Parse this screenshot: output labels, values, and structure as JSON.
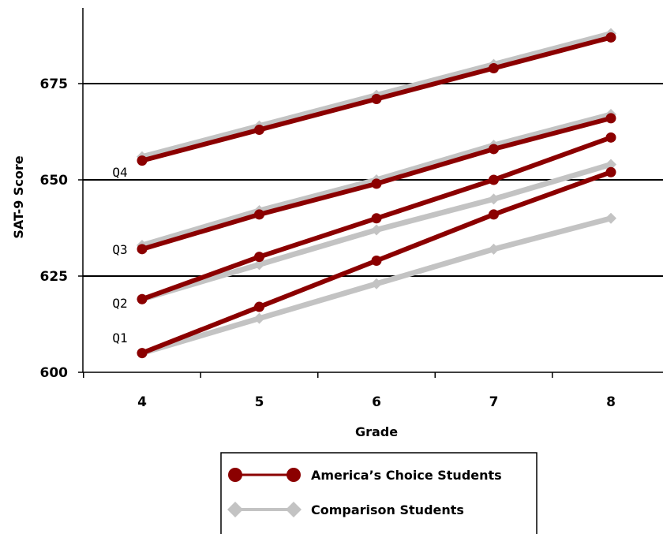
{
  "colors": {
    "america": "#8b0000",
    "comparison": "#c3c3c3",
    "gridline": "#000000"
  },
  "chart_data": {
    "type": "line",
    "title": "",
    "xlabel": "Grade",
    "ylabel": "SAT-9 Score",
    "x": [
      4,
      5,
      6,
      7,
      8
    ],
    "x_tick_labels": [
      "4",
      "5",
      "6",
      "7",
      "8"
    ],
    "ylim": [
      600,
      695
    ],
    "y_ticks": [
      600,
      625,
      650,
      675
    ],
    "y_tick_labels": [
      "600",
      "625",
      "650",
      "675"
    ],
    "grid": "horizontal",
    "legend_position": "bottom",
    "quartile_labels": [
      {
        "text": "Q4",
        "value": 652
      },
      {
        "text": "Q3",
        "value": 632
      },
      {
        "text": "Q2",
        "value": 618
      },
      {
        "text": "Q1",
        "value": 609
      }
    ],
    "series": [
      {
        "legend_entry": "America's Choice Students",
        "group": "america",
        "quartile": "Q4",
        "values": [
          655,
          663,
          671,
          679,
          687
        ]
      },
      {
        "legend_entry": "Comparison Students",
        "group": "comparison",
        "quartile": "Q4",
        "values": [
          656,
          664,
          672,
          680,
          688
        ]
      },
      {
        "legend_entry": "America's Choice Students",
        "group": "america",
        "quartile": "Q3",
        "values": [
          632,
          641,
          649,
          658,
          666
        ]
      },
      {
        "legend_entry": "Comparison Students",
        "group": "comparison",
        "quartile": "Q3",
        "values": [
          633,
          642,
          650,
          659,
          667
        ]
      },
      {
        "legend_entry": "America's Choice Students",
        "group": "america",
        "quartile": "Q2",
        "values": [
          619,
          630,
          640,
          650,
          661
        ]
      },
      {
        "legend_entry": "Comparison Students",
        "group": "comparison",
        "quartile": "Q2",
        "values": [
          619,
          628,
          637,
          645,
          654
        ]
      },
      {
        "legend_entry": "America's Choice Students",
        "group": "america",
        "quartile": "Q1",
        "values": [
          605,
          617,
          629,
          641,
          652
        ]
      },
      {
        "legend_entry": "Comparison Students",
        "group": "comparison",
        "quartile": "Q1",
        "values": [
          605,
          614,
          623,
          632,
          640
        ]
      }
    ],
    "legend": [
      {
        "label": "America’s Choice Students",
        "group": "america",
        "marker": "circle"
      },
      {
        "label": "Comparison Students",
        "group": "comparison",
        "marker": "diamond"
      }
    ]
  }
}
